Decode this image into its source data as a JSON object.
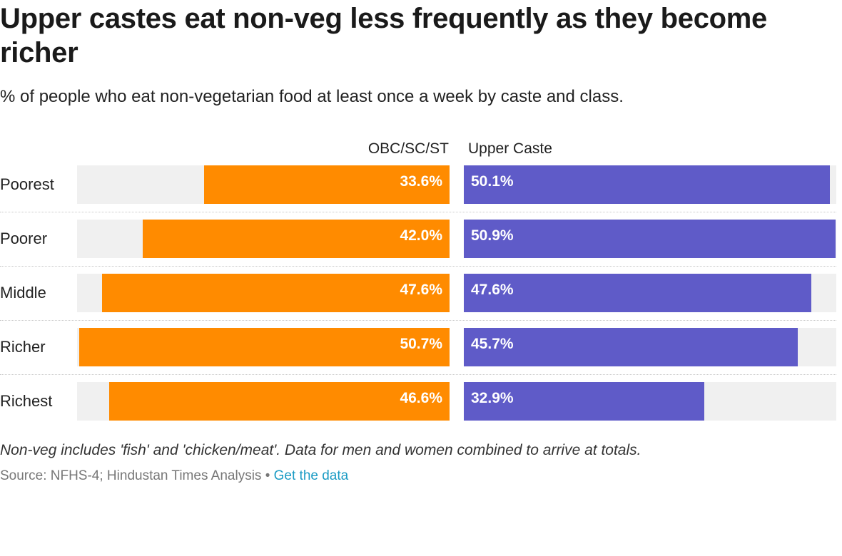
{
  "title": "Upper castes eat non-veg less frequently as they become richer",
  "subtitle": "% of people who eat non-vegetarian food at least once a week by caste and class.",
  "footnote": "Non-veg includes 'fish' and 'chicken/meat'. Data for men and women combined to arrive at totals.",
  "source": {
    "text": "Source: NFHS-4; Hindustan Times Analysis",
    "separator": " • ",
    "link_label": "Get the data"
  },
  "colors": {
    "obc_sc_st": "#ff8b00",
    "upper_caste": "#5f5bc8",
    "track": "#f0f0f0",
    "link": "#1a9bc4"
  },
  "chart_data": {
    "type": "bar",
    "orientation": "horizontal",
    "layout": "back-to-back",
    "categories": [
      "Poorest",
      "Poorer",
      "Middle",
      "Richer",
      "Richest"
    ],
    "series": [
      {
        "name": "OBC/SC/ST",
        "values": [
          33.6,
          42.0,
          47.6,
          50.7,
          46.6
        ],
        "labels": [
          "33.6%",
          "42.0%",
          "47.6%",
          "50.7%",
          "46.6%"
        ]
      },
      {
        "name": "Upper Caste",
        "values": [
          50.1,
          50.9,
          47.6,
          45.7,
          32.9
        ],
        "labels": [
          "50.1%",
          "50.9%",
          "47.6%",
          "45.7%",
          "32.9%"
        ]
      }
    ],
    "xlim": [
      0,
      51
    ],
    "unit": "%",
    "grid": false,
    "legend": "column headers above bars"
  }
}
